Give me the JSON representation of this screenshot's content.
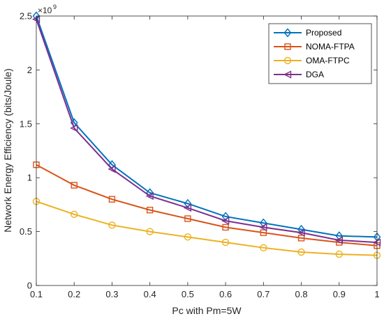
{
  "chart_data": {
    "type": "line",
    "xlabel": "Pc with Pm=5W",
    "ylabel": "Network Energy Efficiency (bits/Joule)",
    "y_multiplier_base": "×10",
    "y_multiplier_exp": "9",
    "xlim": [
      0.1,
      1
    ],
    "ylim": [
      0,
      2.5
    ],
    "x": [
      0.1,
      0.2,
      0.3,
      0.4,
      0.5,
      0.6,
      0.7,
      0.8,
      0.9,
      1
    ],
    "xticks": [
      "0.1",
      "0.2",
      "0.3",
      "0.4",
      "0.5",
      "0.6",
      "0.7",
      "0.8",
      "0.9",
      "1"
    ],
    "yticks": [
      {
        "value": 0,
        "label": "0"
      },
      {
        "value": 0.5,
        "label": "0.5"
      },
      {
        "value": 1,
        "label": "1"
      },
      {
        "value": 1.5,
        "label": "1.5"
      },
      {
        "value": 2,
        "label": "2"
      },
      {
        "value": 2.5,
        "label": "2.5"
      }
    ],
    "grid": false,
    "legend_position": "top-right",
    "series": [
      {
        "name": "Proposed",
        "color": "#0072BD",
        "marker": "diamond",
        "values": [
          2.5,
          1.51,
          1.12,
          0.86,
          0.76,
          0.64,
          0.58,
          0.52,
          0.46,
          0.45
        ]
      },
      {
        "name": "NOMA-FTPA",
        "color": "#D95319",
        "marker": "square",
        "values": [
          1.12,
          0.93,
          0.8,
          0.7,
          0.62,
          0.54,
          0.49,
          0.44,
          0.4,
          0.37
        ]
      },
      {
        "name": "OMA-FTPC",
        "color": "#EDB120",
        "marker": "circle",
        "values": [
          0.78,
          0.66,
          0.56,
          0.5,
          0.45,
          0.4,
          0.35,
          0.31,
          0.29,
          0.28
        ]
      },
      {
        "name": "DGA",
        "color": "#7E2F8E",
        "marker": "triangle-left",
        "values": [
          2.47,
          1.46,
          1.08,
          0.83,
          0.72,
          0.6,
          0.54,
          0.49,
          0.42,
          0.4
        ]
      }
    ]
  }
}
